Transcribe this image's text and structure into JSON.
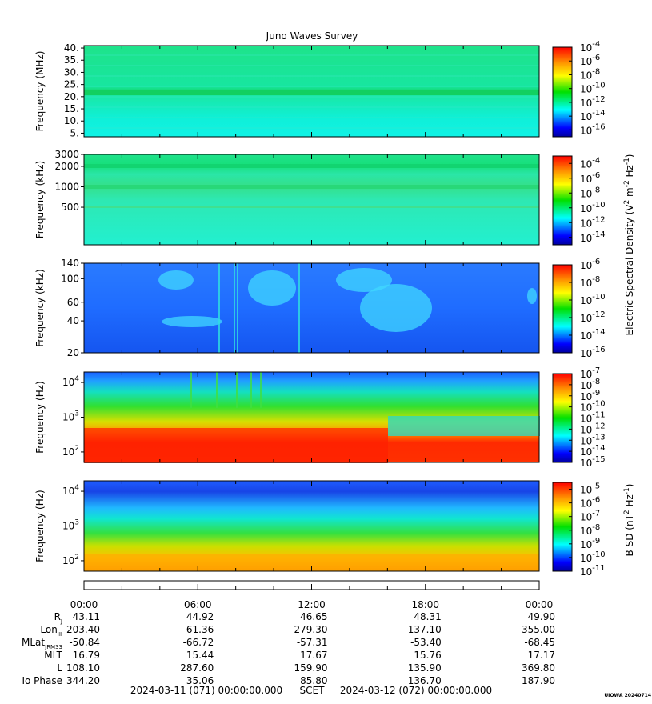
{
  "chart_data": {
    "type": "heatmap",
    "title": "Juno Waves Survey",
    "panels": [
      {
        "id": "p1",
        "ylabel": "Frequency (MHz)",
        "yscale": "linear",
        "ylim": [
          3.5,
          41
        ],
        "yticks": [
          "40.",
          "35.",
          "30.",
          "25.",
          "20.",
          "15.",
          "10.",
          "5."
        ],
        "ytick_values": [
          40,
          35,
          30,
          25,
          20,
          15,
          10,
          5
        ],
        "colorbar_ticks": [
          "-4",
          "-6",
          "-8",
          "-10",
          "-12",
          "-14",
          "-16"
        ],
        "colorbar_exponents": [
          -4,
          -6,
          -8,
          -10,
          -12,
          -14,
          -16
        ],
        "colorbar_range": [
          -17,
          -4
        ]
      },
      {
        "id": "p2",
        "ylabel": "Frequency (kHz)",
        "yscale": "log",
        "ylim": [
          140,
          3000
        ],
        "yticks": [
          "3000",
          "2000",
          "1000",
          "500"
        ],
        "ytick_values": [
          3000,
          2000,
          1000,
          500
        ],
        "colorbar_ticks": [
          "-4",
          "-6",
          "-8",
          "-10",
          "-12",
          "-14"
        ],
        "colorbar_exponents": [
          -4,
          -6,
          -8,
          -10,
          -12,
          -14
        ],
        "colorbar_range": [
          -15,
          -3
        ]
      },
      {
        "id": "p3",
        "ylabel": "Frequency (kHz)",
        "yscale": "log",
        "ylim": [
          20,
          140
        ],
        "yticks": [
          "140",
          "100",
          "60",
          "40",
          "20"
        ],
        "ytick_values": [
          140,
          100,
          60,
          40,
          20
        ],
        "colorbar_ticks": [
          "-6",
          "-8",
          "-10",
          "-12",
          "-14",
          "-16"
        ],
        "colorbar_exponents": [
          -6,
          -8,
          -10,
          -12,
          -14,
          -16
        ],
        "colorbar_range": [
          -16,
          -6
        ]
      },
      {
        "id": "p4",
        "ylabel": "Frequency (Hz)",
        "yscale": "log",
        "ylim": [
          50,
          20000
        ],
        "yticks": [
          "10",
          "10",
          "10"
        ],
        "ytick_exponents": [
          "4",
          "3",
          "2"
        ],
        "ytick_values": [
          10000,
          1000,
          100
        ],
        "colorbar_ticks": [
          "-7",
          "-8",
          "-9",
          "-10",
          "-11",
          "-12",
          "-13",
          "-14",
          "-15"
        ],
        "colorbar_exponents": [
          -7,
          -8,
          -9,
          -10,
          -11,
          -12,
          -13,
          -14,
          -15
        ],
        "colorbar_range": [
          -15,
          -7
        ]
      },
      {
        "id": "p5",
        "ylabel": "Frequency (Hz)",
        "yscale": "log",
        "ylim": [
          50,
          20000
        ],
        "yticks": [
          "10",
          "10",
          "10"
        ],
        "ytick_exponents": [
          "4",
          "3",
          "2"
        ],
        "ytick_values": [
          10000,
          1000,
          100
        ],
        "colorbar_ticks": [
          "-5",
          "-6",
          "-7",
          "-8",
          "-9",
          "-10",
          "-11"
        ],
        "colorbar_exponents": [
          -5,
          -6,
          -7,
          -8,
          -9,
          -10,
          -11
        ],
        "colorbar_range": [
          -11,
          -4.5
        ]
      }
    ],
    "colorbar_labels": {
      "electric": "Electric Spectral Density (V",
      "electric_sup1": "2",
      "electric_mid": " m",
      "electric_sup2": "-2",
      "electric_mid2": " Hz",
      "electric_sup3": "-1",
      "electric_end": ")",
      "magnetic": "B SD (nT",
      "magnetic_sup1": "2",
      "magnetic_mid": " Hz",
      "magnetic_sup2": "-1",
      "magnetic_end": ")",
      "base": "10"
    },
    "x_axis": {
      "time_labels": [
        "00:00",
        "06:00",
        "12:00",
        "18:00",
        "00:00"
      ],
      "time_hours": [
        0,
        6,
        12,
        18,
        24
      ],
      "ephemeris": [
        {
          "label": "R",
          "sub": "J",
          "values": [
            "43.11",
            "44.92",
            "46.65",
            "48.31",
            "49.90"
          ]
        },
        {
          "label": "Lon",
          "sub": "III",
          "values": [
            "203.40",
            "61.36",
            "279.30",
            "137.10",
            "355.00"
          ]
        },
        {
          "label": "MLat",
          "sub": "JRM33",
          "values": [
            "-50.84",
            "-66.72",
            "-57.31",
            "-53.40",
            "-68.45"
          ]
        },
        {
          "label": "MLT",
          "sub": "",
          "values": [
            "16.79",
            "15.44",
            "17.67",
            "15.76",
            "17.17"
          ]
        },
        {
          "label": "L",
          "sub": "",
          "values": [
            "108.10",
            "287.60",
            "159.90",
            "135.90",
            "369.80"
          ]
        },
        {
          "label": "Io Phase",
          "sub": "",
          "values": [
            "344.20",
            "35.06",
            "85.80",
            "136.70",
            "187.90"
          ]
        }
      ],
      "start": "2024-03-11 (071) 00:00:00.000",
      "scet": "SCET",
      "end": "2024-03-12 (072) 00:00:00.000"
    },
    "footer": "UIOWA 20240714"
  }
}
